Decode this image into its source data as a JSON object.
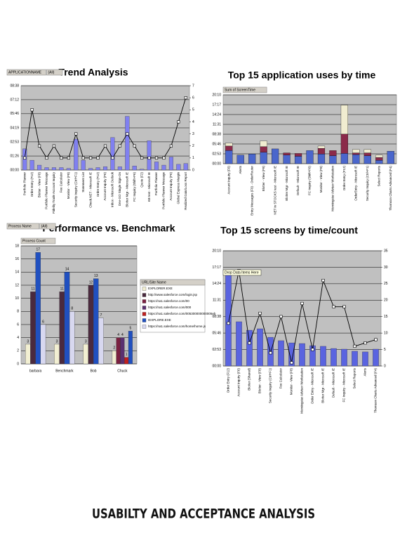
{
  "caption": "USABILTY AND ACCEPTANCE ANALYSIS",
  "chart_data": [
    {
      "type": "bar",
      "title": "Trend Analysis",
      "field_button": "APPLICATIONNAME",
      "filter": "(All)",
      "categories": [
        "Portfolio Planner",
        "Order Entry (F12)",
        "Blotter - View (F8)",
        "Portfolio Planner Message",
        "Fidelity Trade Account Inquiry",
        "Fee Calculator",
        "Monitor - View (F8)",
        "Security Inquiry (Ctrl+F1)",
        "Statement List",
        "Check.NET - Microsoft IE",
        "Order Entry (F12)",
        "Account Inquiry (F6)",
        "Inbox - Microsoft Outlook",
        "Dev-GO Single Sign-On",
        "Blotter Mgr - Microsoft IE",
        "FC Inquiry (Shift+F6)",
        "Quote (F2)",
        "KB test - Microsoft IE",
        "Portfolio Planner",
        "Portfolio Planner Message",
        "Account Inquiry (F6)",
        "Global Express Margin",
        "Realized Gain/Loss Report"
      ],
      "ylim": [
        0,
        518
      ],
      "yticks": [
        {
          "value": 0,
          "label": "00:00"
        },
        {
          "value": 86,
          "label": "01:26"
        },
        {
          "value": 173,
          "label": "02:53"
        },
        {
          "value": 259,
          "label": "04:19"
        },
        {
          "value": 346,
          "label": "05:46"
        },
        {
          "value": 432,
          "label": "07:12"
        },
        {
          "value": 518,
          "label": "08:38"
        }
      ],
      "y2lim": [
        0,
        7
      ],
      "y2ticks": [
        0,
        1,
        2,
        3,
        4,
        5,
        6,
        7
      ],
      "grid": true,
      "series": [
        {
          "color": "#8080f0",
          "values": [
            130,
            60,
            30,
            15,
            15,
            15,
            10,
            190,
            60,
            10,
            15,
            20,
            200,
            20,
            330,
            25,
            5,
            180,
            50,
            30,
            80,
            35,
            40
          ]
        },
        {
          "type": "line",
          "axis": "y2",
          "color": "#000000",
          "values": [
            1,
            5,
            2,
            1,
            2,
            1,
            1,
            3,
            1,
            1,
            1,
            2,
            1,
            2,
            3,
            2,
            1,
            1,
            1,
            1,
            2,
            4,
            6
          ]
        }
      ]
    },
    {
      "type": "stacked_bar",
      "title": "Top 15 application uses by time",
      "field_button": "Sum of ScreenTime",
      "categories": [
        "Account Inquiry (F6)",
        "Alerts",
        "Entry Messages (F9) - OrderRouter",
        "Blotter - View (F8)",
        "NET in STOCKS test - Microsoft IE",
        "Blotter Mgr - Microsoft IE",
        "Default - Microsoft IE",
        "FC Inquiry (Shift+F6)",
        "Monitor - View (F8)",
        "Morningstar Advisor Workstation",
        "Order Entry (F12)",
        "OrderEntry - Microsoft IE",
        "Security Inquiry (Ctrl+F1)",
        "Select Reports",
        "Thomson Charts Advanced (F4)"
      ],
      "ylim": [
        0,
        1210
      ],
      "yticks": [
        {
          "value": 0,
          "label": "00:00"
        },
        {
          "value": 173,
          "label": "02:53"
        },
        {
          "value": 346,
          "label": "05:46"
        },
        {
          "value": 518,
          "label": "08:38"
        },
        {
          "value": 691,
          "label": "11:31"
        },
        {
          "value": 864,
          "label": "14:24"
        },
        {
          "value": 1037,
          "label": "17:17"
        },
        {
          "value": 1210,
          "label": "20:10"
        }
      ],
      "grid": true,
      "series": [
        {
          "color": "#4a66cc",
          "values": [
            230,
            150,
            170,
            200,
            260,
            150,
            130,
            230,
            170,
            140,
            180,
            160,
            140,
            60,
            220
          ]
        },
        {
          "color": "#8b2a4a",
          "values": [
            80,
            0,
            0,
            100,
            0,
            40,
            50,
            0,
            100,
            90,
            340,
            30,
            50,
            50,
            0
          ]
        },
        {
          "color": "#f0ecd0",
          "values": [
            50,
            0,
            0,
            100,
            0,
            0,
            0,
            0,
            40,
            0,
            510,
            60,
            60,
            40,
            0
          ]
        }
      ]
    },
    {
      "type": "bar",
      "title": "Performance vs. Benchmark",
      "field_button": "Process Name",
      "filter": "(All)",
      "value_button": "Process Count",
      "legend_title": "URL/Site Name",
      "categories": [
        "barbara",
        "Benchmark",
        "Bob",
        "Chuck"
      ],
      "ylim": [
        0,
        18
      ],
      "yticks": [
        0,
        2,
        4,
        6,
        8,
        10,
        12,
        14,
        16,
        18
      ],
      "grid": true,
      "series": [
        {
          "name": "EXPLORER.EXE",
          "color": "#f2efd2",
          "values": [
            3,
            3,
            3,
            2
          ]
        },
        {
          "name": "http://www.salesforce.com/login.jsp",
          "color": "#4a2a3e",
          "values": [
            11,
            11,
            12,
            null
          ]
        },
        {
          "name": "https://na1.salesforce.com/00",
          "color": "#7a2040",
          "values": [
            null,
            null,
            null,
            4
          ]
        },
        {
          "name": "https://na1.salesforce.com/000",
          "color": "#5a3070",
          "values": [
            null,
            null,
            null,
            4
          ]
        },
        {
          "name": "https://na1.salesforce.com/005300000000005eb",
          "color": "#c02020",
          "values": [
            null,
            null,
            null,
            1
          ]
        },
        {
          "name": "IEXPLORE.EXE",
          "color": "#2050c0",
          "values": [
            17,
            14,
            13,
            5
          ]
        },
        {
          "name": "https://na1.salesforce.com/home/home.js",
          "color": "#d8d8f0",
          "values": [
            6,
            8,
            7,
            null
          ]
        }
      ]
    },
    {
      "type": "bar",
      "title": "Top 15 screens by time/count",
      "tooltip": "Drop Data Items Here",
      "categories": [
        "Order Entry (F12)",
        "Account Inquiry (F6)",
        "Blotter (Shared)",
        "Blotter - View (F8)",
        "Security Inquiry (Ctrl+F1)",
        "Fee Calculator",
        "Monitor - View (F8)",
        "Morningstar Advisor Workstation",
        "Order Entry - Microsoft IE",
        "Blotter Mgr - Microsoft IE",
        "Default - Microsoft IE",
        "FC Inquiry - Microsoft IE",
        "Select Reports",
        "Alerts",
        "Thomson Charts Advanced (F4)"
      ],
      "ylim": [
        0,
        1210
      ],
      "yticks": [
        {
          "value": 0,
          "label": "00:00"
        },
        {
          "value": 173,
          "label": "02:53"
        },
        {
          "value": 346,
          "label": "05:46"
        },
        {
          "value": 518,
          "label": "08:38"
        },
        {
          "value": 691,
          "label": "11:31"
        },
        {
          "value": 864,
          "label": "14:24"
        },
        {
          "value": 1037,
          "label": "17:17"
        },
        {
          "value": 1210,
          "label": "20:10"
        }
      ],
      "y2lim": [
        0,
        35
      ],
      "y2ticks": [
        0,
        5,
        10,
        15,
        20,
        25,
        30,
        35
      ],
      "grid": true,
      "series": [
        {
          "color": "#5a64e0",
          "values": [
            1003,
            465,
            376,
            391,
            302,
            266,
            243,
            236,
            214,
            207,
            184,
            177,
            155,
            148,
            177
          ]
        },
        {
          "type": "line",
          "axis": "y2",
          "color": "#000000",
          "values": [
            13,
            29,
            7,
            16,
            4,
            15,
            1,
            19,
            5,
            26,
            18,
            18,
            6,
            7,
            8
          ]
        }
      ]
    }
  ]
}
